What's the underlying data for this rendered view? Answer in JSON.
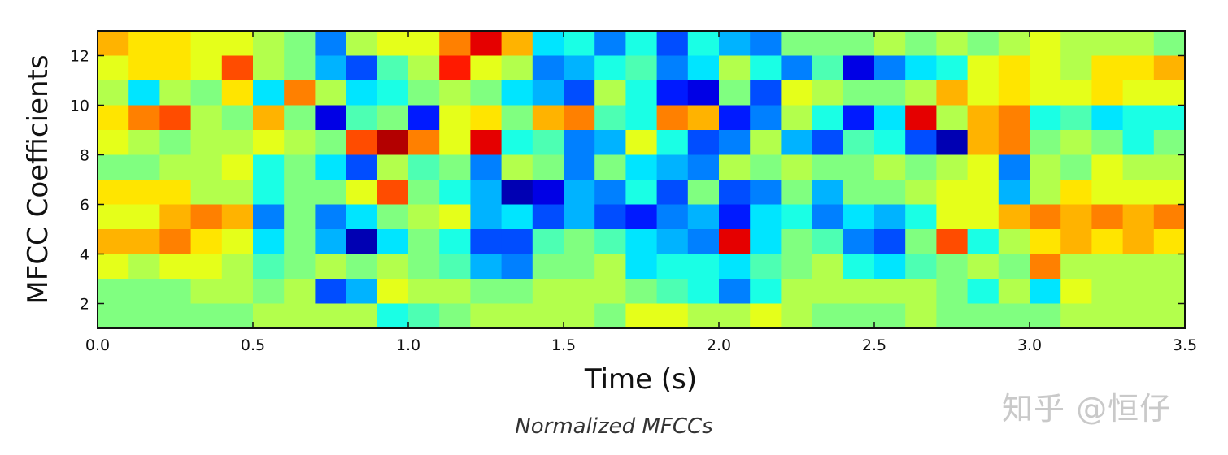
{
  "chart_data": {
    "type": "heatmap",
    "title": "",
    "xlabel": "Time (s)",
    "ylabel": "MFCC Coefficients",
    "xlim": [
      0.0,
      3.5
    ],
    "ylim": [
      1,
      13
    ],
    "xticks": [
      "0.0",
      "0.5",
      "1.0",
      "1.5",
      "2.0",
      "2.5",
      "3.0",
      "3.5"
    ],
    "yticks": [
      "2",
      "4",
      "6",
      "8",
      "10",
      "12"
    ],
    "colormap": "jet",
    "value_range": [
      -1,
      1
    ],
    "time_step": 0.1,
    "coefficients_top_to_bottom": [
      12,
      11,
      10,
      9,
      8,
      7,
      6,
      5,
      4,
      3,
      2,
      1
    ],
    "values": [
      [
        0.4,
        0.3,
        0.3,
        0.2,
        0.2,
        0.1,
        0.0,
        -0.5,
        0.1,
        0.2,
        0.2,
        0.5,
        0.8,
        0.4,
        -0.3,
        -0.2,
        -0.5,
        -0.2,
        -0.6,
        -0.2,
        -0.4,
        -0.5,
        0.0,
        0.0,
        0.0,
        0.1,
        0.0,
        0.1,
        0.0,
        0.1,
        0.2,
        0.1,
        0.1,
        0.1,
        0.0
      ],
      [
        0.2,
        0.3,
        0.3,
        0.2,
        0.6,
        0.1,
        0.0,
        -0.4,
        -0.6,
        -0.1,
        0.1,
        0.7,
        0.2,
        0.1,
        -0.5,
        -0.4,
        -0.2,
        -0.1,
        -0.5,
        -0.3,
        0.1,
        -0.2,
        -0.5,
        -0.1,
        -0.8,
        -0.5,
        -0.3,
        -0.2,
        0.2,
        0.3,
        0.2,
        0.1,
        0.3,
        0.3,
        0.4
      ],
      [
        0.1,
        -0.3,
        0.1,
        0.0,
        0.3,
        -0.3,
        0.5,
        0.1,
        -0.3,
        -0.2,
        0.0,
        0.1,
        0.0,
        -0.3,
        -0.4,
        -0.6,
        0.1,
        -0.2,
        -0.7,
        -0.8,
        0.0,
        -0.6,
        0.2,
        0.1,
        0.0,
        0.0,
        0.1,
        0.4,
        0.2,
        0.3,
        0.2,
        0.2,
        0.3,
        0.2,
        0.2
      ],
      [
        0.3,
        0.5,
        0.6,
        0.1,
        0.0,
        0.4,
        0.0,
        -0.8,
        -0.1,
        0.0,
        -0.7,
        0.2,
        0.3,
        0.0,
        0.4,
        0.5,
        -0.1,
        -0.2,
        0.5,
        0.4,
        -0.7,
        -0.5,
        0.1,
        -0.2,
        -0.7,
        -0.3,
        0.8,
        0.1,
        0.4,
        0.5,
        -0.2,
        -0.1,
        -0.3,
        -0.2,
        -0.2
      ],
      [
        0.2,
        0.1,
        0.0,
        0.1,
        0.1,
        0.2,
        0.1,
        0.0,
        0.6,
        0.9,
        0.5,
        0.2,
        0.8,
        -0.2,
        -0.1,
        -0.5,
        -0.4,
        0.2,
        -0.2,
        -0.6,
        -0.5,
        0.1,
        -0.4,
        -0.6,
        -0.1,
        -0.2,
        -0.6,
        -0.9,
        0.4,
        0.5,
        0.0,
        0.1,
        0.0,
        -0.2,
        0.0
      ],
      [
        0.0,
        0.0,
        0.1,
        0.1,
        0.2,
        -0.2,
        0.0,
        -0.3,
        -0.6,
        0.1,
        -0.1,
        0.0,
        -0.5,
        0.1,
        0.0,
        -0.5,
        0.0,
        -0.3,
        -0.4,
        -0.5,
        0.1,
        0.0,
        0.1,
        0.0,
        0.0,
        0.1,
        0.0,
        0.1,
        0.2,
        -0.5,
        0.1,
        0.0,
        0.2,
        0.1,
        0.1
      ],
      [
        0.3,
        0.3,
        0.3,
        0.1,
        0.1,
        -0.2,
        0.0,
        0.0,
        0.2,
        0.6,
        0.0,
        -0.2,
        -0.4,
        -0.9,
        -0.8,
        -0.4,
        -0.5,
        -0.2,
        -0.6,
        0.0,
        -0.6,
        -0.5,
        0.0,
        -0.4,
        0.0,
        0.0,
        0.1,
        0.2,
        0.2,
        -0.4,
        0.1,
        0.3,
        0.2,
        0.2,
        0.2
      ],
      [
        0.2,
        0.2,
        0.4,
        0.5,
        0.4,
        -0.5,
        0.0,
        -0.5,
        -0.3,
        0.0,
        0.1,
        0.2,
        -0.4,
        -0.3,
        -0.6,
        -0.4,
        -0.6,
        -0.7,
        -0.5,
        -0.4,
        -0.7,
        -0.3,
        -0.2,
        -0.5,
        -0.3,
        -0.4,
        -0.2,
        0.2,
        0.2,
        0.4,
        0.5,
        0.4,
        0.5,
        0.4,
        0.5
      ],
      [
        0.4,
        0.4,
        0.5,
        0.3,
        0.2,
        -0.3,
        0.0,
        -0.4,
        -0.9,
        -0.3,
        0.0,
        -0.2,
        -0.6,
        -0.6,
        -0.1,
        0.0,
        -0.1,
        -0.3,
        -0.4,
        -0.5,
        0.8,
        -0.3,
        0.0,
        -0.1,
        -0.5,
        -0.6,
        0.0,
        0.6,
        -0.2,
        0.1,
        0.3,
        0.4,
        0.3,
        0.4,
        0.3
      ],
      [
        0.2,
        0.1,
        0.2,
        0.2,
        0.1,
        -0.1,
        0.0,
        0.1,
        0.0,
        0.1,
        0.0,
        -0.1,
        -0.4,
        -0.5,
        0.0,
        0.0,
        0.1,
        -0.3,
        -0.2,
        -0.2,
        -0.3,
        -0.1,
        0.0,
        0.1,
        -0.2,
        -0.3,
        -0.1,
        0.0,
        0.1,
        0.0,
        0.5,
        0.1,
        0.1,
        0.1,
        0.1
      ],
      [
        0.0,
        0.0,
        0.0,
        0.1,
        0.1,
        0.0,
        0.1,
        -0.6,
        -0.4,
        0.2,
        0.1,
        0.1,
        0.0,
        0.0,
        0.1,
        0.1,
        0.1,
        0.0,
        -0.1,
        -0.2,
        -0.5,
        -0.2,
        0.1,
        0.1,
        0.1,
        0.1,
        0.1,
        0.0,
        -0.2,
        0.1,
        -0.3,
        0.2,
        0.1,
        0.1,
        0.1
      ],
      [
        0.0,
        0.0,
        0.0,
        0.0,
        0.0,
        0.1,
        0.1,
        0.1,
        0.1,
        -0.2,
        -0.1,
        0.0,
        0.1,
        0.1,
        0.1,
        0.1,
        0.0,
        0.2,
        0.2,
        0.1,
        0.1,
        0.2,
        0.1,
        0.0,
        0.0,
        0.0,
        0.1,
        0.0,
        0.0,
        0.0,
        0.0,
        0.1,
        0.1,
        0.1,
        0.1
      ]
    ]
  },
  "caption": "Normalized MFCCs",
  "watermark": "知乎 @恒仔"
}
